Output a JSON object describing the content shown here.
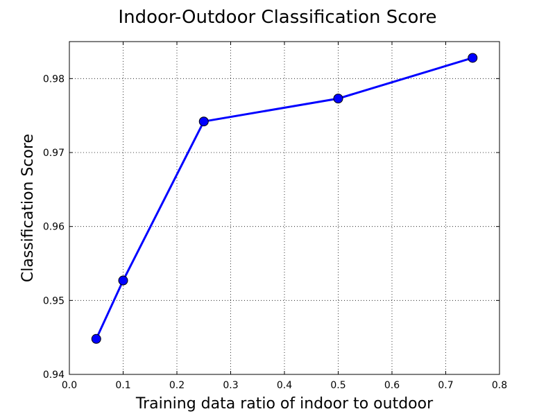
{
  "chart_data": {
    "type": "line",
    "title": "Indoor-Outdoor Classification Score",
    "xlabel": "Training data ratio of indoor to outdoor",
    "ylabel": "Classification Score",
    "xlim": [
      0.0,
      0.8
    ],
    "ylim": [
      0.94,
      0.985
    ],
    "x_ticks": [
      0.0,
      0.1,
      0.2,
      0.3,
      0.4,
      0.5,
      0.6,
      0.7,
      0.8
    ],
    "x_tick_labels": [
      "0.0",
      "0.1",
      "0.2",
      "0.3",
      "0.4",
      "0.5",
      "0.6",
      "0.7",
      "0.8"
    ],
    "y_ticks": [
      0.94,
      0.95,
      0.96,
      0.97,
      0.98
    ],
    "y_tick_labels": [
      "0.94",
      "0.95",
      "0.96",
      "0.97",
      "0.98"
    ],
    "grid": true,
    "legend": "none",
    "series": [
      {
        "color": "#0000ff",
        "marker": "circle",
        "x": [
          0.05,
          0.1,
          0.25,
          0.5,
          0.75
        ],
        "y": [
          0.9448,
          0.9527,
          0.9742,
          0.9773,
          0.9828
        ]
      }
    ]
  }
}
